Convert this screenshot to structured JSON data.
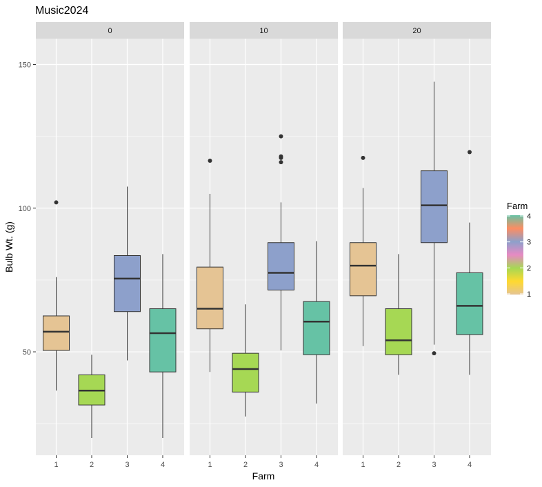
{
  "chart_data": {
    "type": "boxplot",
    "title": "Music2024",
    "xlabel": "Farm",
    "ylabel": "Bulb Wt. (g)",
    "ylim": [
      14,
      159
    ],
    "y_ticks": [
      50,
      100,
      150
    ],
    "grid": true,
    "categories": [
      "1",
      "2",
      "3",
      "4"
    ],
    "facets": [
      "0",
      "10",
      "20"
    ],
    "colors": {
      "1": "#e5c494",
      "2": "#a6d854",
      "3": "#8da0cb",
      "4": "#66c2a5",
      "panel": "#ebebeb",
      "strip": "#d9d9d9"
    },
    "legend": {
      "title": "Farm",
      "position": "right",
      "labels": [
        "4",
        "3",
        "2",
        "1"
      ],
      "gradient": [
        "#66c2a5",
        "#fc8d62",
        "#8da0cb",
        "#e78ac3",
        "#a6d854",
        "#ffd92f",
        "#e5c494"
      ]
    },
    "panels": [
      {
        "facet": "0",
        "boxes": [
          {
            "farm": "1",
            "whisker_low": 36.5,
            "q1": 50.5,
            "median": 57,
            "q3": 62.5,
            "whisker_high": 76,
            "outliers": [
              102
            ]
          },
          {
            "farm": "2",
            "whisker_low": 20,
            "q1": 31.5,
            "median": 36.5,
            "q3": 42,
            "whisker_high": 49,
            "outliers": []
          },
          {
            "farm": "3",
            "whisker_low": 47,
            "q1": 64,
            "median": 75.5,
            "q3": 83.5,
            "whisker_high": 107.5,
            "outliers": []
          },
          {
            "farm": "4",
            "whisker_low": 20,
            "q1": 43,
            "median": 56.5,
            "q3": 65,
            "whisker_high": 84,
            "outliers": []
          }
        ]
      },
      {
        "facet": "10",
        "boxes": [
          {
            "farm": "1",
            "whisker_low": 43,
            "q1": 58,
            "median": 65,
            "q3": 79.5,
            "whisker_high": 105,
            "outliers": [
              116.5
            ]
          },
          {
            "farm": "2",
            "whisker_low": 27.5,
            "q1": 36,
            "median": 44,
            "q3": 49.5,
            "whisker_high": 66.5,
            "outliers": []
          },
          {
            "farm": "3",
            "whisker_low": 50.5,
            "q1": 71.5,
            "median": 77.5,
            "q3": 88,
            "whisker_high": 102,
            "outliers": [
              116,
              117.5,
              118,
              125
            ]
          },
          {
            "farm": "4",
            "whisker_low": 32,
            "q1": 49,
            "median": 60.5,
            "q3": 67.5,
            "whisker_high": 88.5,
            "outliers": []
          }
        ]
      },
      {
        "facet": "20",
        "boxes": [
          {
            "farm": "1",
            "whisker_low": 52,
            "q1": 69.5,
            "median": 80,
            "q3": 88,
            "whisker_high": 107,
            "outliers": [
              117.5
            ]
          },
          {
            "farm": "2",
            "whisker_low": 42,
            "q1": 49,
            "median": 54,
            "q3": 65,
            "whisker_high": 84,
            "outliers": []
          },
          {
            "farm": "3",
            "whisker_low": 52.5,
            "q1": 88,
            "median": 101,
            "q3": 113,
            "whisker_high": 144,
            "outliers": [
              49.5
            ]
          },
          {
            "farm": "4",
            "whisker_low": 42,
            "q1": 56,
            "median": 66,
            "q3": 77.5,
            "whisker_high": 95,
            "outliers": [
              119.5
            ]
          }
        ]
      }
    ]
  }
}
